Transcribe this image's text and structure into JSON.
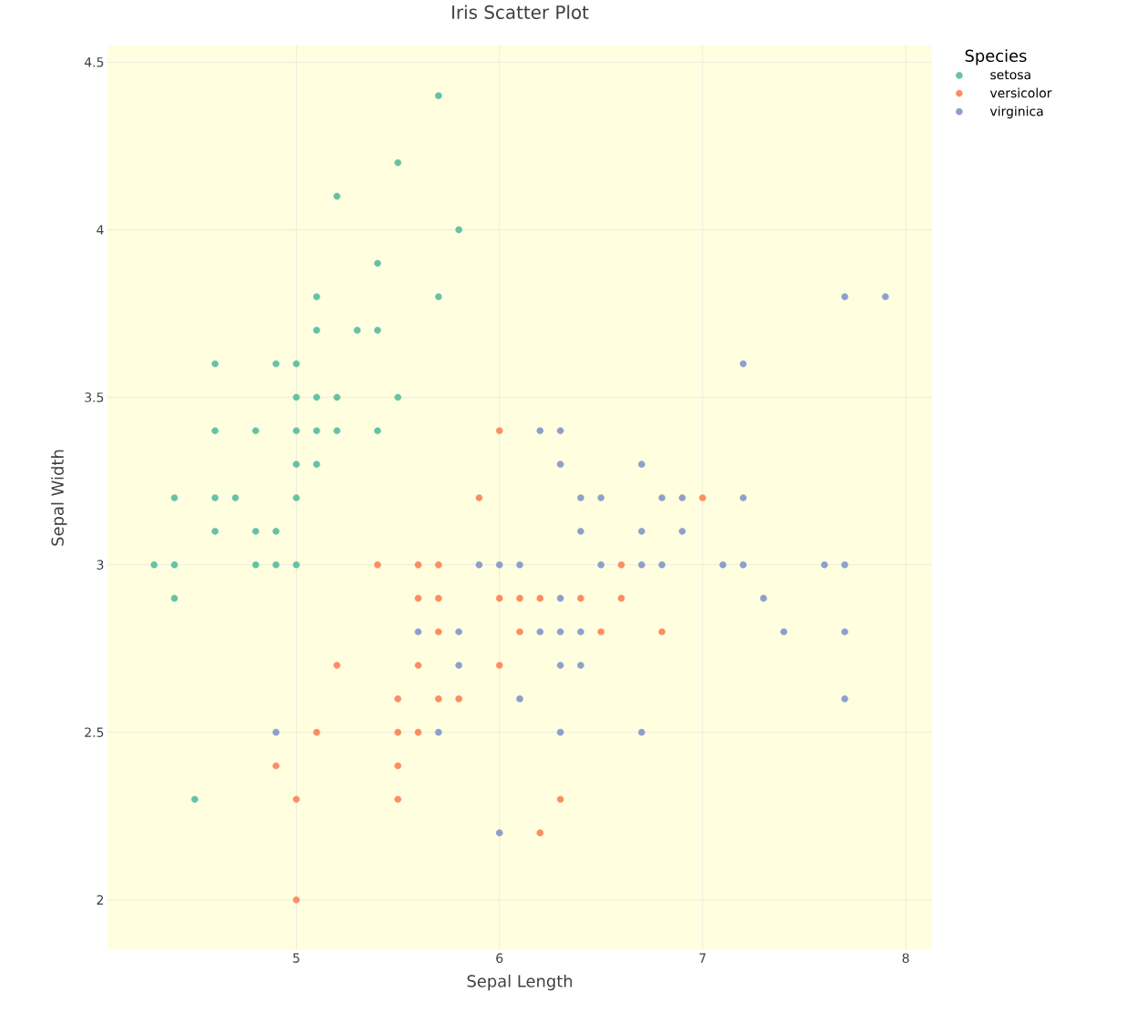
{
  "chart_data": {
    "type": "scatter",
    "title": "Iris Scatter Plot",
    "xlabel": "Sepal Length",
    "ylabel": "Sepal Width",
    "legend_title": "Species",
    "xlim": [
      4.07,
      8.13
    ],
    "ylim": [
      1.85,
      4.55
    ],
    "xticks": [
      5,
      6,
      7,
      8
    ],
    "yticks": [
      2,
      2.5,
      3,
      3.5,
      4,
      4.5
    ],
    "grid": true,
    "legend": "top right",
    "marker": "circle",
    "series": [
      {
        "name": "setosa",
        "color": "#66c2a5",
        "x": [
          5.7,
          5.5,
          5.2,
          5.8,
          5.4,
          5.1,
          5.7,
          5.1,
          5.3,
          5.4,
          4.6,
          4.9,
          5.0,
          5.0,
          5.1,
          5.2,
          5.5,
          4.6,
          4.8,
          5.0,
          5.1,
          5.2,
          5.4,
          5.0,
          5.1,
          4.4,
          4.6,
          4.7,
          5.0,
          4.6,
          4.8,
          4.9,
          4.3,
          4.4,
          4.8,
          4.9,
          5.0,
          4.4,
          4.5
        ],
        "values": [
          4.4,
          4.2,
          4.1,
          4.0,
          3.9,
          3.8,
          3.8,
          3.7,
          3.7,
          3.7,
          3.6,
          3.6,
          3.6,
          3.5,
          3.5,
          3.5,
          3.5,
          3.4,
          3.4,
          3.4,
          3.4,
          3.4,
          3.4,
          3.3,
          3.3,
          3.2,
          3.2,
          3.2,
          3.2,
          3.1,
          3.1,
          3.1,
          3.0,
          3.0,
          3.0,
          3.0,
          3.0,
          2.9,
          2.3
        ]
      },
      {
        "name": "versicolor",
        "color": "#fc8d62",
        "x": [
          6.0,
          5.9,
          7.0,
          5.4,
          5.6,
          5.7,
          6.6,
          5.6,
          5.7,
          6.0,
          6.1,
          6.2,
          6.4,
          6.6,
          5.7,
          6.1,
          6.5,
          6.8,
          5.2,
          5.6,
          6.0,
          5.5,
          5.7,
          5.8,
          5.1,
          5.5,
          5.6,
          4.9,
          5.5,
          5.0,
          5.5,
          6.3,
          6.2,
          5.0
        ],
        "values": [
          3.4,
          3.2,
          3.2,
          3.0,
          3.0,
          3.0,
          3.0,
          2.9,
          2.9,
          2.9,
          2.9,
          2.9,
          2.9,
          2.9,
          2.8,
          2.8,
          2.8,
          2.8,
          2.7,
          2.7,
          2.7,
          2.6,
          2.6,
          2.6,
          2.5,
          2.5,
          2.5,
          2.4,
          2.4,
          2.3,
          2.3,
          2.3,
          2.2,
          2.0
        ]
      },
      {
        "name": "virginica",
        "color": "#8da0cb",
        "x": [
          7.7,
          7.9,
          7.2,
          6.2,
          6.3,
          6.3,
          6.7,
          6.4,
          6.5,
          6.8,
          6.9,
          7.2,
          6.4,
          6.7,
          6.9,
          5.9,
          6.0,
          6.1,
          6.5,
          6.7,
          6.8,
          7.1,
          7.2,
          7.6,
          7.7,
          6.3,
          7.3,
          5.6,
          5.8,
          6.2,
          6.3,
          6.4,
          7.4,
          7.7,
          5.8,
          6.3,
          6.4,
          6.1,
          7.7,
          4.9,
          5.7,
          6.3,
          6.7,
          6.0
        ],
        "values": [
          3.8,
          3.8,
          3.6,
          3.4,
          3.4,
          3.3,
          3.3,
          3.2,
          3.2,
          3.2,
          3.2,
          3.2,
          3.1,
          3.1,
          3.1,
          3.0,
          3.0,
          3.0,
          3.0,
          3.0,
          3.0,
          3.0,
          3.0,
          3.0,
          3.0,
          2.9,
          2.9,
          2.8,
          2.8,
          2.8,
          2.8,
          2.8,
          2.8,
          2.8,
          2.7,
          2.7,
          2.7,
          2.6,
          2.6,
          2.5,
          2.5,
          2.5,
          2.5,
          2.2
        ]
      }
    ]
  }
}
